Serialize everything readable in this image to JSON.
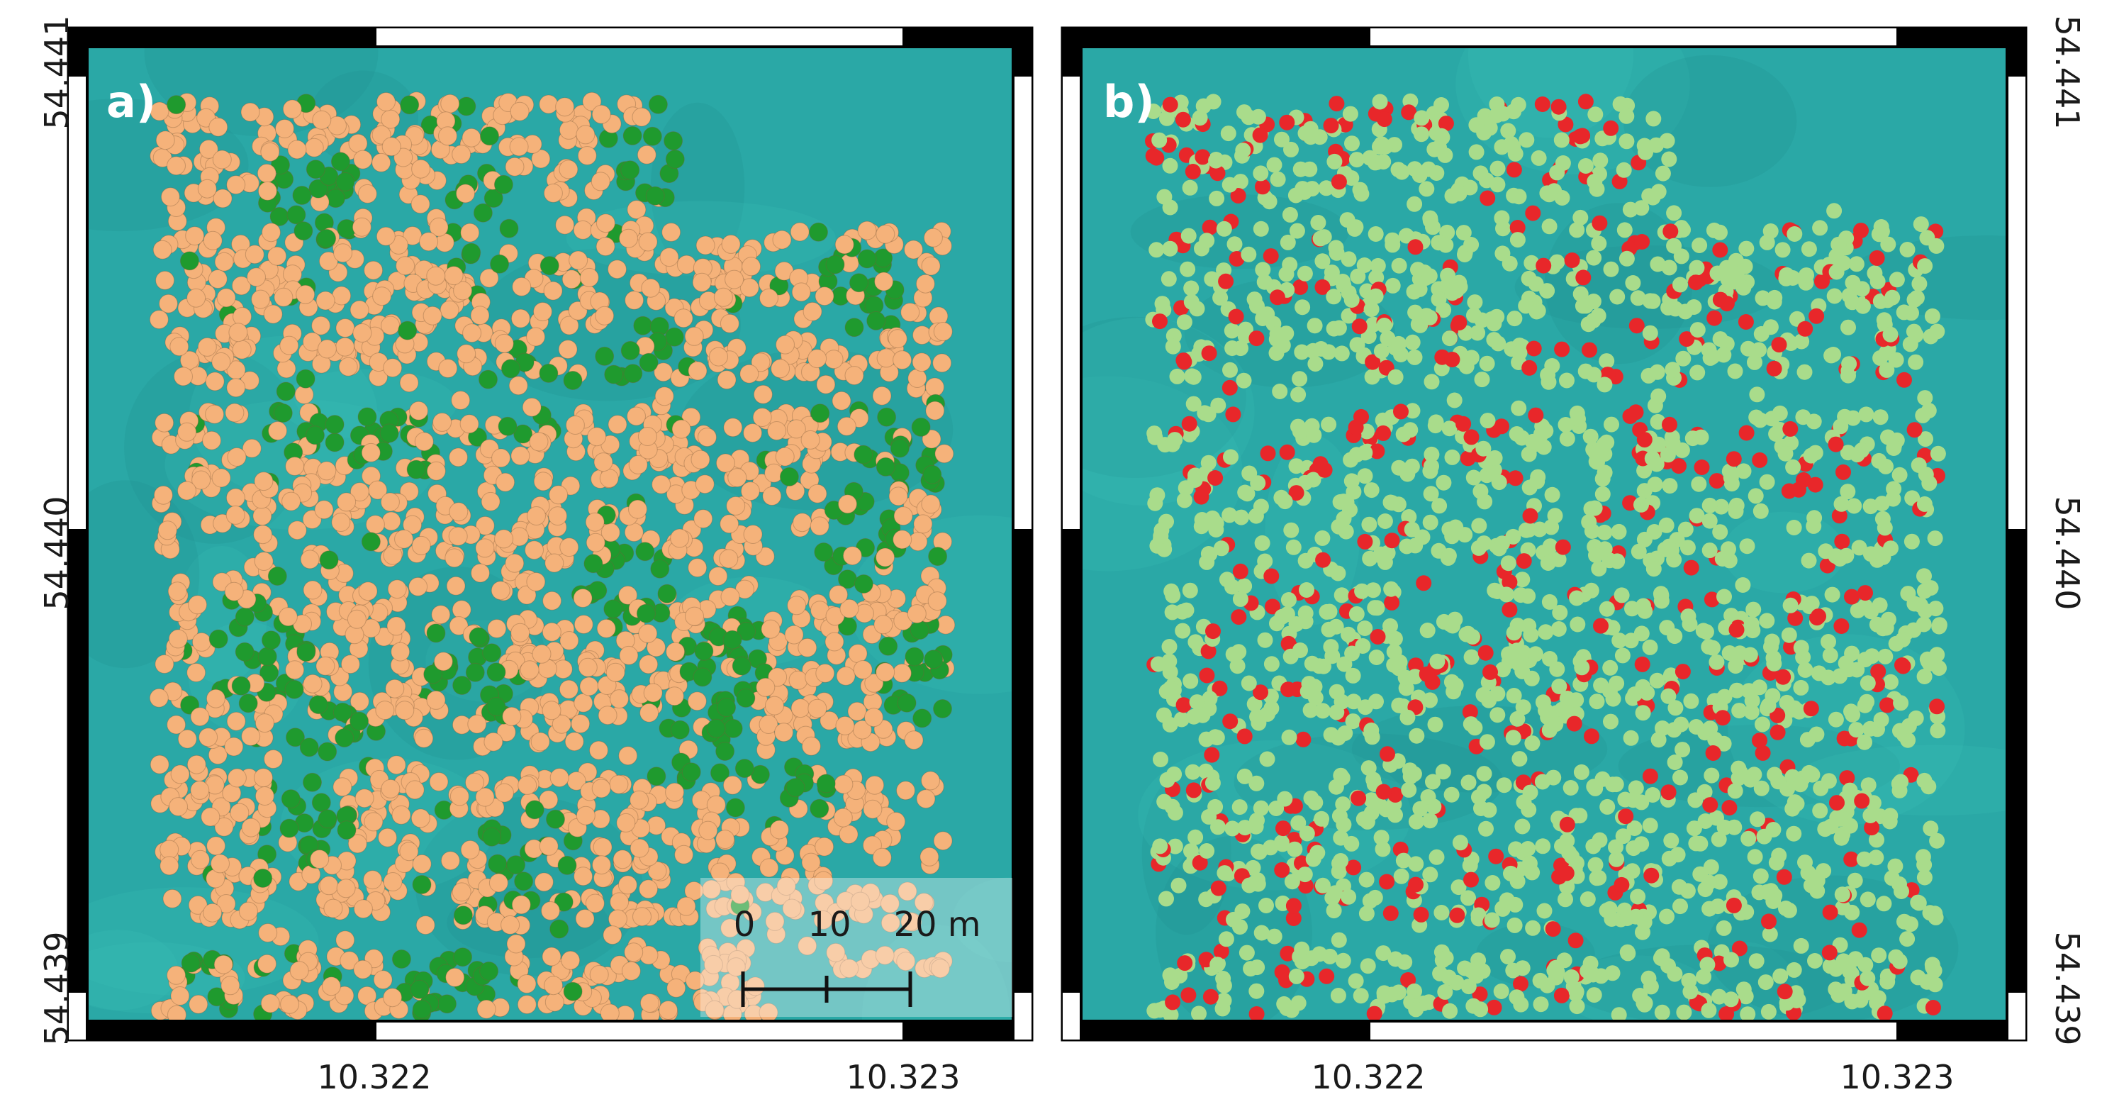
{
  "axes": {
    "lat_tick_labels": [
      "54.441",
      "54.440",
      "54.439"
    ],
    "lon_tick_labels": [
      "10.322",
      "10.323"
    ]
  },
  "panels": [
    {
      "label": "a)",
      "marker_classes": [
        {
          "color": "#f5b27a"
        },
        {
          "color": "#1f9a2e"
        }
      ],
      "scale_bar": {
        "labels": [
          "0",
          "10",
          "20 m"
        ]
      }
    },
    {
      "label": "b)",
      "marker_classes": [
        {
          "color": "#a9dc8b"
        },
        {
          "color": "#e8272a"
        }
      ]
    }
  ],
  "colors": {
    "background": "#2aa8a6",
    "background_light": "#3cc0b8",
    "background_dark": "#1e8c8e",
    "frame_dark": "#000000",
    "frame_light": "#ffffff"
  }
}
